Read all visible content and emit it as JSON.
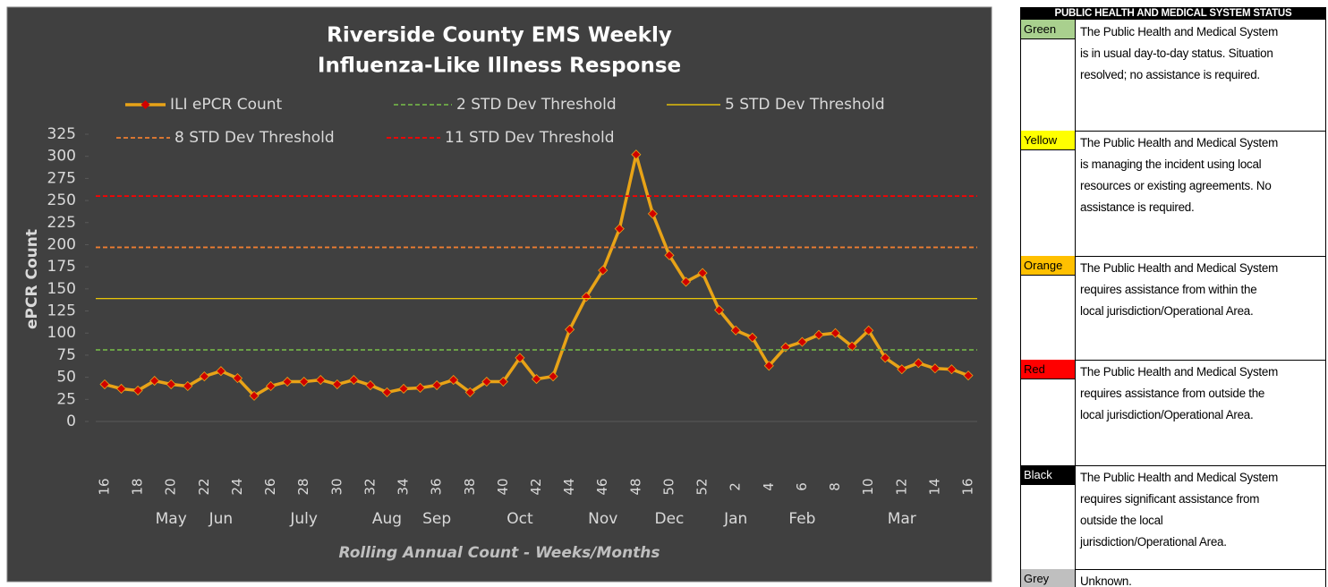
{
  "chart_data": {
    "type": "line",
    "title": [
      "Riverside County EMS Weekly",
      "Influenza-Like Illness Response"
    ],
    "x_label": "Rolling Annual Count - Weeks/Months",
    "y_label": "ePCR Count",
    "categories": [
      "16",
      null,
      "18",
      null,
      "20",
      null,
      "22",
      null,
      "24",
      null,
      "26",
      null,
      "28",
      null,
      "30",
      null,
      "32",
      null,
      "34",
      null,
      "36",
      null,
      "38",
      null,
      "40",
      null,
      "42",
      null,
      "44",
      null,
      "46",
      null,
      "48",
      null,
      "50",
      null,
      "52",
      null,
      "2",
      null,
      "4",
      null,
      "6",
      null,
      "8",
      null,
      "10",
      null,
      "12",
      null,
      "14",
      null,
      "16"
    ],
    "month_categories": [
      null,
      null,
      null,
      null,
      "May",
      null,
      null,
      "Jun",
      null,
      null,
      null,
      null,
      "July",
      null,
      null,
      null,
      null,
      "Aug",
      null,
      null,
      "Sep",
      null,
      null,
      null,
      null,
      "Oct",
      null,
      null,
      null,
      null,
      "Nov",
      null,
      null,
      null,
      "Dec",
      null,
      null,
      null,
      "Jan",
      null,
      null,
      null,
      "Feb",
      null,
      null,
      null,
      null,
      null,
      "Mar",
      null,
      null,
      null,
      null
    ],
    "ylim": [
      0,
      325
    ],
    "yticks": [
      0,
      25,
      50,
      75,
      100,
      125,
      150,
      175,
      200,
      225,
      250,
      275,
      300,
      325
    ],
    "series": [
      {
        "name": "ILI ePCR Count",
        "color": "#e8a317",
        "marker_color": "#d00000",
        "values": [
          42,
          37,
          35,
          46,
          42,
          40,
          51,
          57,
          49,
          29,
          40,
          45,
          45,
          47,
          42,
          47,
          41,
          33,
          37,
          38,
          41,
          47,
          33,
          45,
          45,
          72,
          48,
          51,
          104,
          141,
          171,
          218,
          302,
          235,
          188,
          158,
          168,
          126,
          103,
          95,
          63,
          84,
          90,
          98,
          100,
          85,
          103,
          72,
          59,
          66,
          60,
          59,
          52
        ]
      },
      {
        "name": "2 STD Dev Threshold",
        "color": "#70ad47",
        "value": 81,
        "dash": true
      },
      {
        "name": "5 STD Dev Threshold",
        "color": "#ffd700",
        "value": 139,
        "dash": false
      },
      {
        "name": "8 STD Dev Threshold",
        "color": "#ed7d31",
        "value": 197,
        "dash": true
      },
      {
        "name": "11 STD Dev Threshold",
        "color": "#ff0000",
        "value": 255,
        "dash": true
      }
    ]
  },
  "status_table": {
    "title": "PUBLIC HEALTH AND MEDICAL SYSTEM STATUS",
    "rows": [
      {
        "status": "Green",
        "color": "#a9d08e",
        "text_color": "#000000",
        "text": [
          "The Public Health and Medical System",
          "is in usual day-to-day status. Situation",
          "resolved; no assistance is required."
        ]
      },
      {
        "status": "Yellow",
        "color": "#ffff00",
        "text_color": "#000000",
        "text": [
          "The Public Health and Medical System",
          "is managing the incident using local",
          "resources or existing agreements. No",
          "assistance is required."
        ]
      },
      {
        "status": "Orange",
        "color": "#ffc000",
        "text_color": "#000000",
        "text": [
          "The Public Health and Medical System",
          "requires assistance from within the",
          "local jurisdiction/Operational Area."
        ]
      },
      {
        "status": "Red",
        "color": "#ff0000",
        "text_color": "#000000",
        "text": [
          "The Public Health and Medical System",
          "requires assistance from outside the",
          "local jurisdiction/Operational Area."
        ]
      },
      {
        "status": "Black",
        "color": "#000000",
        "text_color": "#ffffff",
        "text": [
          "The Public Health and Medical System",
          "requires significant assistance from",
          "outside the local",
          "jurisdiction/Operational Area."
        ]
      },
      {
        "status": "Grey",
        "color": "#bfbfbf",
        "text_color": "#000000",
        "text": [
          "Unknown."
        ]
      }
    ]
  }
}
